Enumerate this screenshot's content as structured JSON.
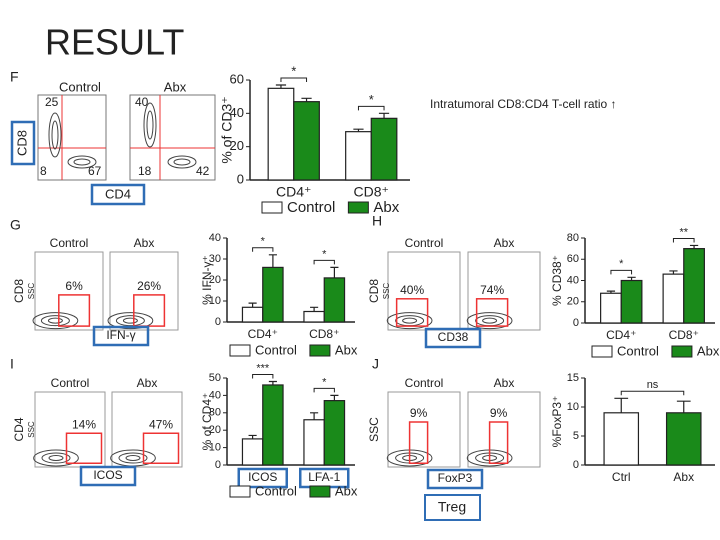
{
  "title": "RESULT",
  "note": "Intratumoral CD8:CD4 T-cell ratio ↑",
  "treg_label": "Treg",
  "flow": [
    {
      "letter": "F",
      "titles": [
        "Control",
        "Abx"
      ],
      "quadrants": [
        [
          "25",
          "67",
          "8"
        ],
        [
          "40",
          "18",
          "42"
        ]
      ],
      "y_axis": [
        "CD8"
      ],
      "x_axis": "CD4"
    },
    {
      "letter": "G",
      "titles": [
        "Control",
        "Abx"
      ],
      "values": [
        "6%",
        "26%"
      ],
      "y_axis": [
        "CD8",
        "SSC"
      ],
      "x_axis": "IFN-γ"
    },
    {
      "letter": "H",
      "titles": [
        "Control",
        "Abx"
      ],
      "values": [
        "40%",
        "74%"
      ],
      "y_axis": [
        "CD8",
        "SSC"
      ],
      "x_axis": "CD38"
    },
    {
      "letter": "I",
      "titles": [
        "Control",
        "Abx"
      ],
      "values": [
        "14%",
        "47%"
      ],
      "y_axis": [
        "CD4",
        "SSC"
      ],
      "x_axis": "ICOS"
    },
    {
      "letter": "J",
      "titles": [
        "Control",
        "Abx"
      ],
      "values": [
        "9%",
        "9%"
      ],
      "y_axis": [
        "SSC"
      ],
      "x_axis": "FoxP3"
    }
  ],
  "chart_data": [
    {
      "type": "bar",
      "y_label": "% of CD3⁺",
      "categories": [
        "CD4⁺",
        "CD8⁺"
      ],
      "ylim": [
        0,
        60
      ],
      "yticks": [
        0,
        20,
        40,
        60
      ],
      "series": [
        {
          "name": "Control",
          "color": "#ffffff",
          "values": [
            55,
            29
          ],
          "errors": [
            2,
            1.5
          ]
        },
        {
          "name": "Abx",
          "color": "#1a8a1a",
          "values": [
            47,
            37
          ],
          "errors": [
            2,
            3
          ]
        }
      ],
      "annotations": [
        "*",
        "*"
      ]
    },
    {
      "type": "bar",
      "y_label": "% IFN-γ⁺",
      "categories": [
        "CD4⁺",
        "CD8⁺"
      ],
      "ylim": [
        0,
        40
      ],
      "yticks": [
        0,
        10,
        20,
        30,
        40
      ],
      "series": [
        {
          "name": "Control",
          "color": "#ffffff",
          "values": [
            7,
            5
          ],
          "errors": [
            2,
            2
          ]
        },
        {
          "name": "Abx",
          "color": "#1a8a1a",
          "values": [
            26,
            21
          ],
          "errors": [
            6,
            5
          ]
        }
      ],
      "annotations": [
        "*",
        "*"
      ]
    },
    {
      "type": "bar",
      "y_label": "% CD38⁺",
      "categories": [
        "CD4⁺",
        "CD8⁺"
      ],
      "ylim": [
        0,
        80
      ],
      "yticks": [
        0,
        20,
        40,
        60,
        80
      ],
      "series": [
        {
          "name": "Control",
          "color": "#ffffff",
          "values": [
            28,
            46
          ],
          "errors": [
            2,
            3
          ]
        },
        {
          "name": "Abx",
          "color": "#1a8a1a",
          "values": [
            40,
            70
          ],
          "errors": [
            3,
            3
          ]
        }
      ],
      "annotations": [
        "*",
        "**"
      ]
    },
    {
      "type": "bar",
      "y_label": "% of CD4⁺",
      "categories": [
        "ICOS",
        "LFA-1"
      ],
      "ylim": [
        0,
        50
      ],
      "yticks": [
        0,
        10,
        20,
        30,
        40,
        50
      ],
      "series": [
        {
          "name": "Control",
          "color": "#ffffff",
          "values": [
            15,
            26
          ],
          "errors": [
            2,
            4
          ]
        },
        {
          "name": "Abx",
          "color": "#1a8a1a",
          "values": [
            46,
            37
          ],
          "errors": [
            2,
            3
          ]
        }
      ],
      "annotations": [
        "***",
        "*"
      ]
    },
    {
      "type": "bar",
      "y_label": "%FoxP3⁺",
      "categories": [
        "Ctrl",
        "Abx"
      ],
      "ylim": [
        0,
        15
      ],
      "yticks": [
        0,
        5,
        10,
        15
      ],
      "values": [
        9,
        9
      ],
      "errors": [
        2.5,
        2
      ],
      "colors": [
        "#ffffff",
        "#1a8a1a"
      ],
      "annotations": [
        "ns"
      ]
    }
  ]
}
